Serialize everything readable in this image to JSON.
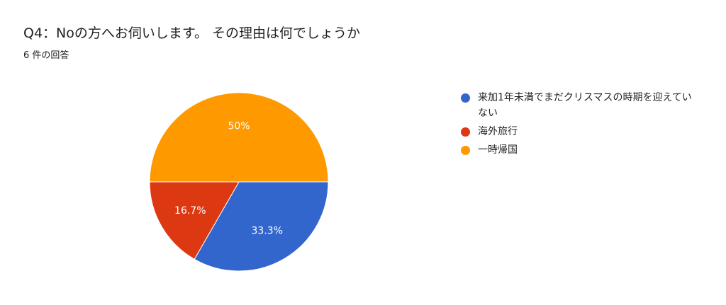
{
  "header": {
    "title": "Q4：Noの方へお伺いします。 その理由は何でしょうか",
    "subtitle": "6 件の回答"
  },
  "colors": {
    "blue": "#3366cc",
    "red": "#dc3912",
    "orange": "#ff9900"
  },
  "chart_data": {
    "type": "pie",
    "title": "Q4：Noの方へお伺いします。 その理由は何でしょうか",
    "legend_position": "right",
    "slices": [
      {
        "label": "来加1年未満でまだクリスマスの時期を迎えていない",
        "value": 33.3,
        "display": "33.3%",
        "color": "#3366cc"
      },
      {
        "label": "海外旅行",
        "value": 16.7,
        "display": "16.7%",
        "color": "#dc3912"
      },
      {
        "label": "一時帰国",
        "value": 50,
        "display": "50%",
        "color": "#ff9900"
      }
    ]
  }
}
